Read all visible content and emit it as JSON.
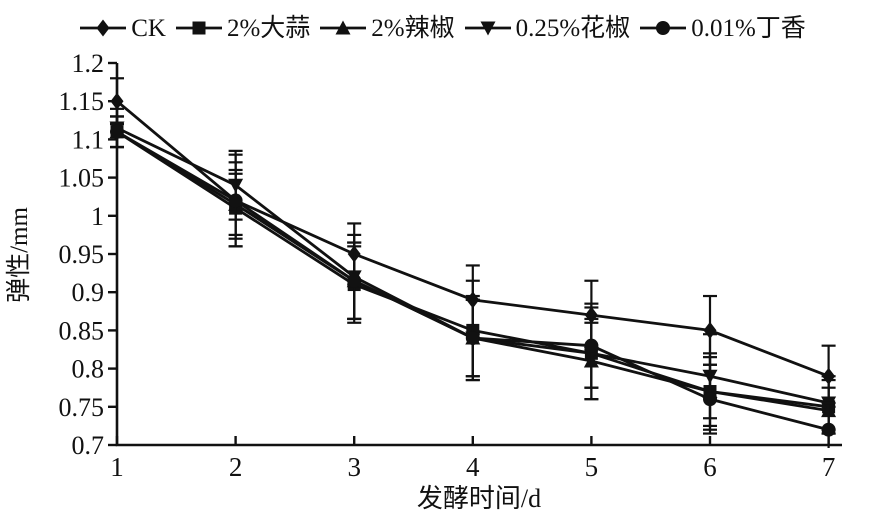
{
  "figure": {
    "background": "#ffffff",
    "ink": "#111111"
  },
  "chart_data": {
    "type": "line",
    "title": "",
    "xlabel": "发酵时间/d",
    "ylabel": "弹性/mm",
    "grid": false,
    "legend_position": "top",
    "error_bars": true,
    "x": [
      1,
      2,
      3,
      4,
      5,
      6,
      7
    ],
    "xlim": [
      1,
      7
    ],
    "ylim": [
      0.7,
      1.2
    ],
    "x_tick_labels": [
      "1",
      "2",
      "3",
      "4",
      "5",
      "6",
      "7"
    ],
    "y_tick_values": [
      0.7,
      0.75,
      0.8,
      0.85,
      0.9,
      0.95,
      1.0,
      1.05,
      1.1,
      1.15,
      1.2
    ],
    "y_tick_labels": [
      "0.7",
      "0.75",
      "0.8",
      "0.85",
      "0.9",
      "0.95",
      "1",
      "1.05",
      "1.1",
      "1.15",
      "1.2"
    ],
    "series": [
      {
        "name": "CK",
        "marker": "diamond",
        "values": [
          1.15,
          1.02,
          0.95,
          0.89,
          0.87,
          0.85,
          0.79
        ],
        "errors": [
          0.03,
          0.05,
          0.04,
          0.045,
          0.045,
          0.045,
          0.04
        ]
      },
      {
        "name": "2%大蒜",
        "marker": "square",
        "values": [
          1.11,
          1.01,
          0.91,
          0.85,
          0.82,
          0.77,
          0.75
        ],
        "errors": [
          0.02,
          0.05,
          0.05,
          0.065,
          0.045,
          0.05,
          0.035
        ]
      },
      {
        "name": "2%辣椒",
        "marker": "triangle-up",
        "values": [
          1.11,
          1.015,
          0.915,
          0.84,
          0.81,
          0.77,
          0.745
        ],
        "errors": [
          0.02,
          0.04,
          0.05,
          0.05,
          0.05,
          0.045,
          0.03
        ]
      },
      {
        "name": "0.25%花椒",
        "marker": "triangle-down",
        "values": [
          1.115,
          1.04,
          0.92,
          0.84,
          0.82,
          0.79,
          0.755
        ],
        "errors": [
          0.025,
          0.045,
          0.055,
          0.05,
          0.06,
          0.055,
          0.035
        ]
      },
      {
        "name": "0.01%丁香",
        "marker": "circle",
        "values": [
          1.11,
          1.02,
          0.915,
          0.84,
          0.83,
          0.76,
          0.72
        ],
        "errors": [
          0.02,
          0.06,
          0.05,
          0.055,
          0.055,
          0.045,
          0.035
        ]
      }
    ]
  }
}
